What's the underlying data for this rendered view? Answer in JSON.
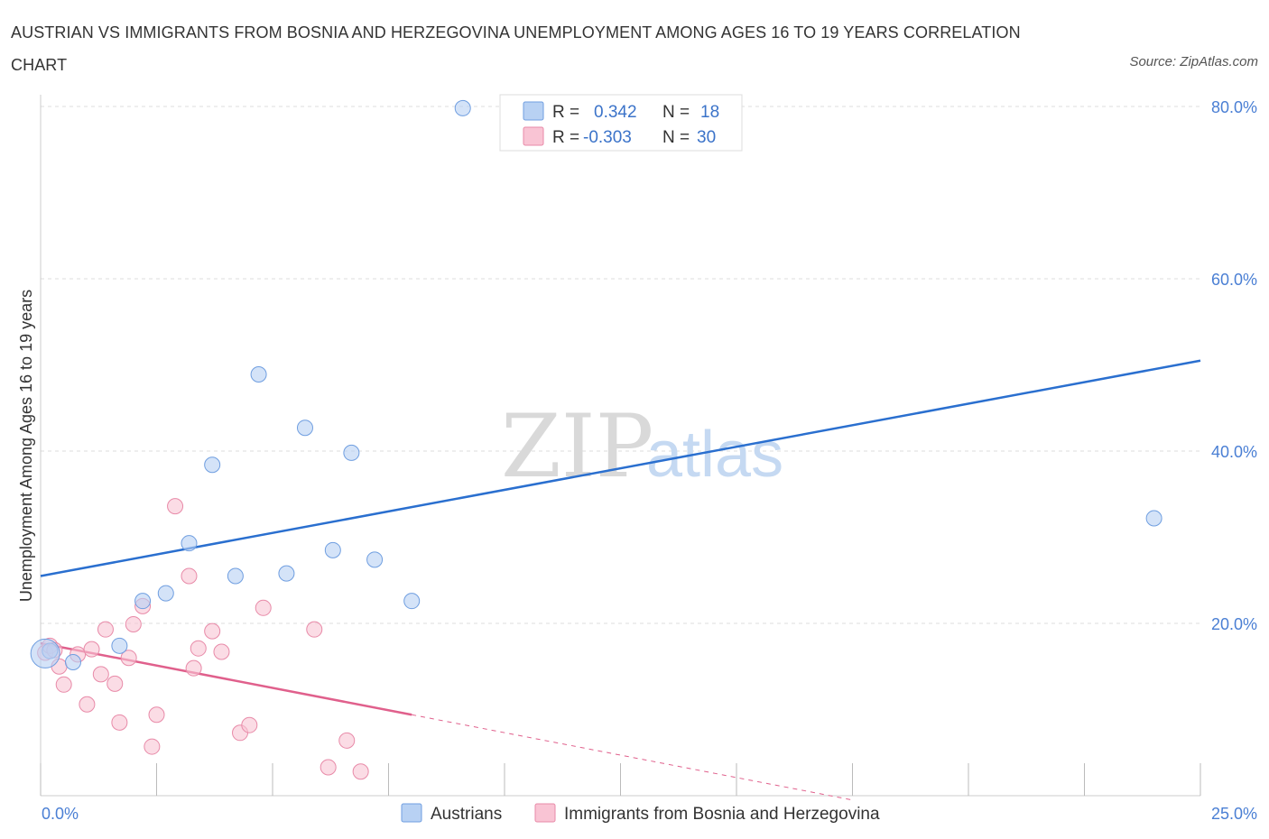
{
  "title": "AUSTRIAN VS IMMIGRANTS FROM BOSNIA AND HERZEGOVINA UNEMPLOYMENT AMONG AGES 16 TO 19 YEARS CORRELATION CHART",
  "source": "Source: ZipAtlas.com",
  "watermark": {
    "zip": "ZIP",
    "atlas": "atlas"
  },
  "colors": {
    "austrians_fill": "#b8d1f3",
    "austrians_stroke": "#6f9ee0",
    "austrians_line": "#2a6fcf",
    "bosnia_fill": "#f9c4d4",
    "bosnia_stroke": "#e88aa8",
    "bosnia_line": "#e0608c",
    "axis_tick_text": "#4a7fd4",
    "grid": "#dddddd"
  },
  "legend_top": {
    "rows": [
      {
        "r_label": "R =",
        "r_value": "0.342",
        "n_label": "N =",
        "n_value": "18"
      },
      {
        "r_label": "R =",
        "r_value": "-0.303",
        "n_label": "N =",
        "n_value": "30"
      }
    ]
  },
  "chart_data": {
    "type": "scatter",
    "title": "AUSTRIAN VS IMMIGRANTS FROM BOSNIA AND HERZEGOVINA UNEMPLOYMENT AMONG AGES 16 TO 19 YEARS CORRELATION CHART",
    "xlabel": "",
    "ylabel": "Unemployment Among Ages 16 to 19 years",
    "xlim": [
      0,
      25
    ],
    "ylim": [
      0,
      80
    ],
    "x_tick_labels": [
      "0.0%",
      "25.0%"
    ],
    "y_ticks": [
      20,
      40,
      60,
      80
    ],
    "y_tick_labels": [
      "20.0%",
      "40.0%",
      "60.0%",
      "80.0%"
    ],
    "grid": true,
    "legend_position": "bottom",
    "series": [
      {
        "name": "Austrians",
        "R": 0.342,
        "N": 18,
        "points": [
          [
            0.2,
            16.8
          ],
          [
            0.7,
            15.5
          ],
          [
            1.7,
            17.4
          ],
          [
            2.2,
            22.6
          ],
          [
            2.7,
            23.5
          ],
          [
            3.2,
            29.3
          ],
          [
            3.7,
            38.4
          ],
          [
            4.2,
            25.5
          ],
          [
            4.7,
            48.9
          ],
          [
            5.3,
            25.8
          ],
          [
            5.7,
            42.7
          ],
          [
            6.3,
            28.5
          ],
          [
            6.7,
            39.8
          ],
          [
            7.2,
            27.4
          ],
          [
            8.0,
            22.6
          ],
          [
            9.1,
            79.8
          ],
          [
            24.0,
            32.2
          ],
          [
            0.1,
            16.5
          ]
        ],
        "trend": {
          "x": [
            0,
            25
          ],
          "y": [
            25.5,
            50.5
          ]
        }
      },
      {
        "name": "Immigrants from Bosnia and Herzegovina",
        "R": -0.303,
        "N": 30,
        "points": [
          [
            0.1,
            16.6
          ],
          [
            0.2,
            17.4
          ],
          [
            0.4,
            15.0
          ],
          [
            0.5,
            12.9
          ],
          [
            0.8,
            16.4
          ],
          [
            1.0,
            10.6
          ],
          [
            1.1,
            17.0
          ],
          [
            1.3,
            14.1
          ],
          [
            1.4,
            19.3
          ],
          [
            1.6,
            13.0
          ],
          [
            1.7,
            8.5
          ],
          [
            1.9,
            16.0
          ],
          [
            2.0,
            19.9
          ],
          [
            2.2,
            22.0
          ],
          [
            2.4,
            5.7
          ],
          [
            2.5,
            9.4
          ],
          [
            2.9,
            33.6
          ],
          [
            3.2,
            25.5
          ],
          [
            3.3,
            14.8
          ],
          [
            3.4,
            17.1
          ],
          [
            3.7,
            19.1
          ],
          [
            3.9,
            16.7
          ],
          [
            4.3,
            7.3
          ],
          [
            4.5,
            8.2
          ],
          [
            4.8,
            21.8
          ],
          [
            5.9,
            19.3
          ],
          [
            6.2,
            3.3
          ],
          [
            6.6,
            6.4
          ],
          [
            6.9,
            2.8
          ],
          [
            0.3,
            16.9
          ]
        ],
        "trend": {
          "x": [
            0,
            8.0,
            17.5
          ],
          "y": [
            17.7,
            9.4,
            -0.5
          ]
        }
      }
    ]
  }
}
